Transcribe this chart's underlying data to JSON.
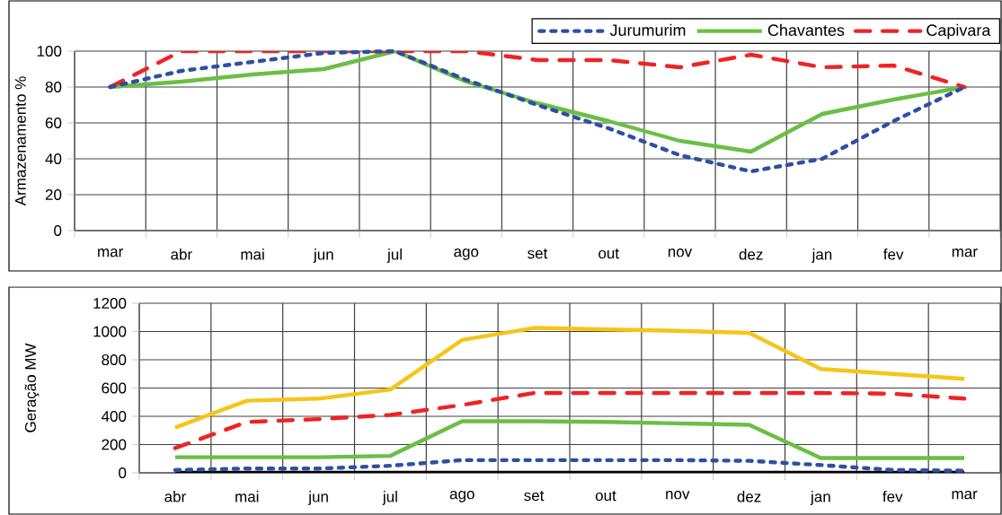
{
  "chart_data": [
    {
      "type": "line",
      "ylabel": "Armazenamento %",
      "categories": [
        "mar",
        "abr",
        "mai",
        "jun",
        "jul",
        "ago",
        "set",
        "out",
        "nov",
        "dez",
        "jan",
        "fev",
        "mar"
      ],
      "ylim": [
        0,
        100
      ],
      "yticks": [
        0,
        20,
        40,
        60,
        80,
        100
      ],
      "grid": true,
      "legend": "top right",
      "series": [
        {
          "name": "Jurumurim",
          "color": "#2e4fa3",
          "line_style": "dotted",
          "values": [
            80,
            89,
            94,
            99,
            100,
            84,
            70,
            57,
            42,
            33,
            40,
            61,
            80
          ]
        },
        {
          "name": "Chavantes",
          "color": "#6abf45",
          "line_style": "solid",
          "values": [
            80,
            83,
            87,
            90,
            100,
            83,
            71,
            61,
            50,
            44,
            65,
            73,
            80
          ]
        },
        {
          "name": "Capivara",
          "color": "#ee2424",
          "line_style": "dashed",
          "values": [
            80,
            100,
            100,
            100,
            100,
            100,
            95,
            95,
            91,
            98,
            91,
            92,
            80
          ]
        }
      ]
    },
    {
      "type": "line",
      "ylabel": "Geração MW",
      "categories": [
        "abr",
        "mai",
        "jun",
        "jul",
        "ago",
        "set",
        "out",
        "nov",
        "dez",
        "jan",
        "fev",
        "mar"
      ],
      "ylim": [
        0,
        1200
      ],
      "yticks": [
        0,
        200,
        400,
        600,
        800,
        1000,
        1200
      ],
      "grid": true,
      "series": [
        {
          "color": "#f5c518",
          "line_style": "solid",
          "values": [
            320,
            510,
            525,
            590,
            940,
            1025,
            1015,
            1005,
            990,
            735,
            700,
            665
          ]
        },
        {
          "color": "#ee2424",
          "line_style": "dashed",
          "values": [
            175,
            360,
            380,
            410,
            480,
            565,
            565,
            565,
            565,
            565,
            560,
            525
          ]
        },
        {
          "color": "#6abf45",
          "line_style": "solid",
          "values": [
            110,
            110,
            110,
            120,
            365,
            365,
            360,
            350,
            340,
            105,
            105,
            105
          ]
        },
        {
          "color": "#2e4fa3",
          "line_style": "dotted",
          "values": [
            20,
            30,
            30,
            50,
            90,
            90,
            90,
            90,
            85,
            55,
            20,
            15
          ]
        },
        {
          "color": "#000000",
          "line_style": "solid",
          "values": [
            0,
            0,
            0,
            0,
            0,
            0,
            0,
            0,
            0,
            0,
            0,
            0
          ]
        }
      ]
    }
  ]
}
